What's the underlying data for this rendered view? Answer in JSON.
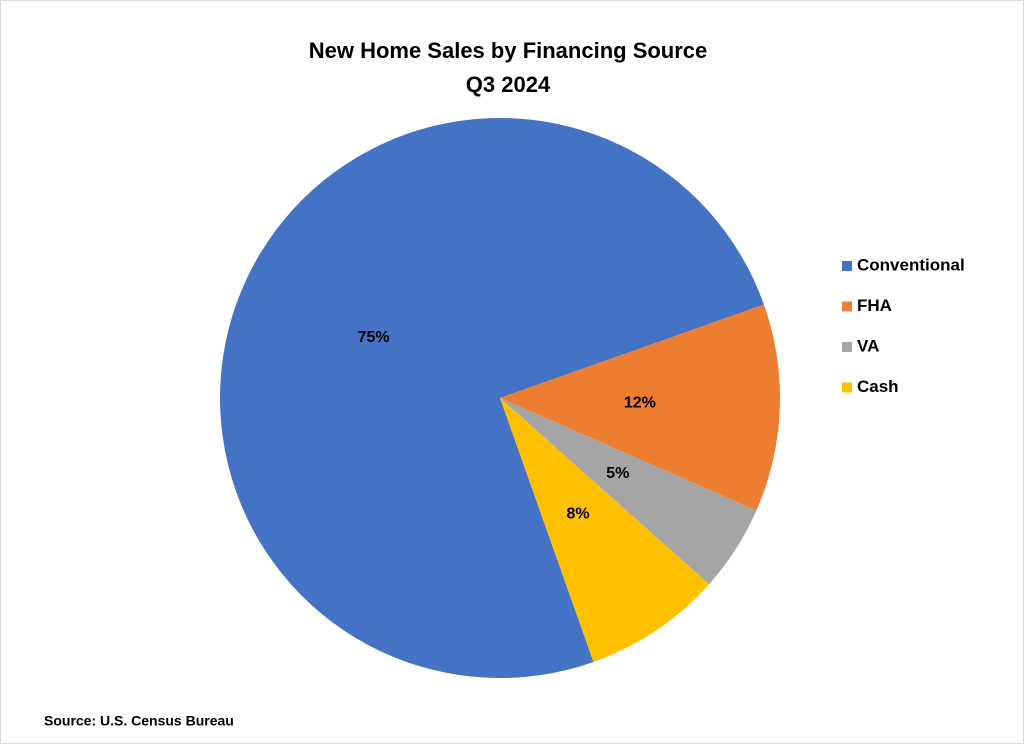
{
  "chart_data": {
    "type": "pie",
    "title": [
      "New Home Sales by Financing Source",
      "Q3 2024"
    ],
    "categories": [
      "Conventional",
      "FHA",
      "VA",
      "Cash"
    ],
    "values": [
      75,
      12,
      5,
      8
    ],
    "value_labels": [
      "75%",
      "12%",
      "5%",
      "8%"
    ],
    "colors": [
      "#4472c4",
      "#ed7d31",
      "#a5a5a5",
      "#ffc000"
    ],
    "legend": "right",
    "source": "Source: U.S. Census Bureau"
  }
}
